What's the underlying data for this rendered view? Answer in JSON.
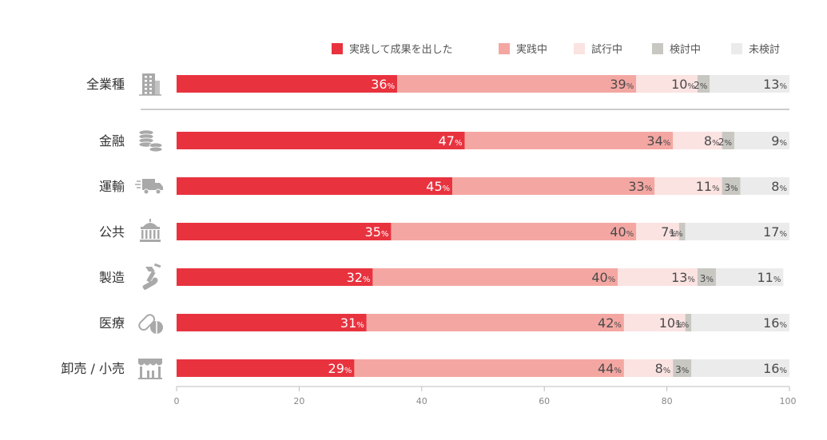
{
  "chart_data": {
    "type": "bar",
    "orientation": "horizontal",
    "stacked": true,
    "percent_suffix": "%",
    "xlim": [
      0,
      100
    ],
    "xticks": [
      0,
      20,
      40,
      60,
      80,
      100
    ],
    "legend_position": "top-right",
    "categories": [
      {
        "label": "全業種",
        "icon": "office-building-icon"
      },
      {
        "label": "金融",
        "icon": "coin-stack-icon"
      },
      {
        "label": "運輸",
        "icon": "delivery-truck-icon"
      },
      {
        "label": "公共",
        "icon": "government-building-icon"
      },
      {
        "label": "製造",
        "icon": "robot-arm-icon"
      },
      {
        "label": "医療",
        "icon": "medicine-pill-icon"
      },
      {
        "label": "卸売 / 小売",
        "icon": "storefront-icon"
      }
    ],
    "series": [
      {
        "name": "実践して成果を出した",
        "color": "#e8333f",
        "text_color": "#ffffff",
        "values": [
          36,
          47,
          45,
          35,
          32,
          31,
          29
        ]
      },
      {
        "name": "実践中",
        "color": "#f4a7a2",
        "text_color": "#4a4a4a",
        "values": [
          39,
          34,
          33,
          40,
          40,
          42,
          44
        ]
      },
      {
        "name": "試行中",
        "color": "#fbe3e2",
        "text_color": "#4a4a4a",
        "values": [
          10,
          8,
          11,
          7,
          13,
          10,
          8
        ]
      },
      {
        "name": "検討中",
        "color": "#c8c7c2",
        "text_color": "#4a4a4a",
        "values": [
          2,
          2,
          3,
          1,
          3,
          1,
          3
        ]
      },
      {
        "name": "未検討",
        "color": "#ebebeb",
        "text_color": "#4a4a4a",
        "values": [
          13,
          9,
          8,
          17,
          11,
          16,
          16
        ]
      }
    ]
  }
}
